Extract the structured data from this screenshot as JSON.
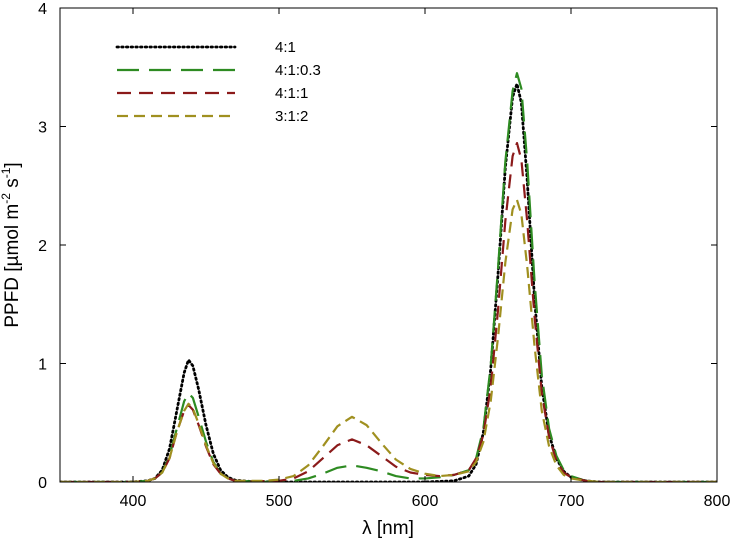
{
  "chart_data": {
    "type": "line",
    "title": "",
    "xlabel": "λ [nm]",
    "ylabel_parts": [
      "PPFD [µmol m",
      "-2",
      " s",
      "-1",
      "]"
    ],
    "xlim": [
      350,
      800
    ],
    "ylim": [
      0,
      4
    ],
    "xticks": [
      400,
      500,
      600,
      700,
      800
    ],
    "yticks": [
      0,
      1,
      2,
      3,
      4
    ],
    "grid": false,
    "legend_position": "top-left",
    "series": [
      {
        "name": "4:1",
        "color": "#000000",
        "dash": "dotted",
        "points": [
          [
            350,
            0
          ],
          [
            400,
            0
          ],
          [
            410,
            0.01
          ],
          [
            415,
            0.03
          ],
          [
            420,
            0.1
          ],
          [
            425,
            0.28
          ],
          [
            430,
            0.6
          ],
          [
            435,
            0.92
          ],
          [
            438,
            1.03
          ],
          [
            441,
            0.98
          ],
          [
            445,
            0.78
          ],
          [
            450,
            0.48
          ],
          [
            455,
            0.24
          ],
          [
            460,
            0.1
          ],
          [
            465,
            0.04
          ],
          [
            470,
            0.015
          ],
          [
            480,
            0.005
          ],
          [
            500,
            0
          ],
          [
            600,
            0
          ],
          [
            620,
            0.01
          ],
          [
            630,
            0.05
          ],
          [
            635,
            0.15
          ],
          [
            640,
            0.42
          ],
          [
            645,
            0.95
          ],
          [
            650,
            1.75
          ],
          [
            655,
            2.65
          ],
          [
            660,
            3.25
          ],
          [
            663,
            3.36
          ],
          [
            666,
            3.2
          ],
          [
            670,
            2.55
          ],
          [
            675,
            1.55
          ],
          [
            680,
            0.8
          ],
          [
            685,
            0.4
          ],
          [
            690,
            0.2
          ],
          [
            695,
            0.09
          ],
          [
            700,
            0.04
          ],
          [
            710,
            0.01
          ],
          [
            720,
            0
          ],
          [
            800,
            0
          ]
        ]
      },
      {
        "name": "4:1:0.3",
        "color": "#2e8b22",
        "dash": "long-dash",
        "points": [
          [
            350,
            0
          ],
          [
            400,
            0
          ],
          [
            410,
            0.01
          ],
          [
            415,
            0.03
          ],
          [
            420,
            0.08
          ],
          [
            425,
            0.22
          ],
          [
            430,
            0.45
          ],
          [
            435,
            0.68
          ],
          [
            438,
            0.75
          ],
          [
            441,
            0.71
          ],
          [
            445,
            0.55
          ],
          [
            450,
            0.34
          ],
          [
            455,
            0.17
          ],
          [
            460,
            0.07
          ],
          [
            465,
            0.03
          ],
          [
            470,
            0.01
          ],
          [
            480,
            0.005
          ],
          [
            500,
            0
          ],
          [
            510,
            0.01
          ],
          [
            520,
            0.03
          ],
          [
            530,
            0.07
          ],
          [
            540,
            0.12
          ],
          [
            550,
            0.14
          ],
          [
            560,
            0.12
          ],
          [
            570,
            0.09
          ],
          [
            580,
            0.05
          ],
          [
            590,
            0.03
          ],
          [
            600,
            0.03
          ],
          [
            610,
            0.04
          ],
          [
            620,
            0.06
          ],
          [
            630,
            0.1
          ],
          [
            635,
            0.2
          ],
          [
            640,
            0.45
          ],
          [
            645,
            0.98
          ],
          [
            650,
            1.8
          ],
          [
            655,
            2.7
          ],
          [
            660,
            3.3
          ],
          [
            663,
            3.45
          ],
          [
            666,
            3.32
          ],
          [
            670,
            2.7
          ],
          [
            675,
            1.7
          ],
          [
            680,
            0.9
          ],
          [
            685,
            0.45
          ],
          [
            690,
            0.22
          ],
          [
            695,
            0.1
          ],
          [
            700,
            0.05
          ],
          [
            710,
            0.01
          ],
          [
            720,
            0
          ],
          [
            800,
            0
          ]
        ]
      },
      {
        "name": "4:1:1",
        "color": "#8b1a1a",
        "dash": "dash",
        "points": [
          [
            350,
            0
          ],
          [
            400,
            0
          ],
          [
            410,
            0.01
          ],
          [
            415,
            0.03
          ],
          [
            420,
            0.08
          ],
          [
            425,
            0.2
          ],
          [
            430,
            0.42
          ],
          [
            435,
            0.6
          ],
          [
            438,
            0.65
          ],
          [
            441,
            0.61
          ],
          [
            445,
            0.48
          ],
          [
            450,
            0.3
          ],
          [
            455,
            0.15
          ],
          [
            460,
            0.07
          ],
          [
            465,
            0.03
          ],
          [
            470,
            0.01
          ],
          [
            480,
            0.005
          ],
          [
            500,
            0.01
          ],
          [
            510,
            0.03
          ],
          [
            520,
            0.09
          ],
          [
            530,
            0.2
          ],
          [
            540,
            0.31
          ],
          [
            550,
            0.36
          ],
          [
            560,
            0.31
          ],
          [
            570,
            0.22
          ],
          [
            580,
            0.13
          ],
          [
            590,
            0.08
          ],
          [
            600,
            0.06
          ],
          [
            610,
            0.05
          ],
          [
            620,
            0.06
          ],
          [
            630,
            0.1
          ],
          [
            635,
            0.2
          ],
          [
            640,
            0.4
          ],
          [
            645,
            0.8
          ],
          [
            650,
            1.45
          ],
          [
            655,
            2.2
          ],
          [
            660,
            2.75
          ],
          [
            663,
            2.86
          ],
          [
            666,
            2.72
          ],
          [
            670,
            2.2
          ],
          [
            675,
            1.4
          ],
          [
            680,
            0.75
          ],
          [
            685,
            0.38
          ],
          [
            690,
            0.18
          ],
          [
            695,
            0.08
          ],
          [
            700,
            0.04
          ],
          [
            710,
            0.01
          ],
          [
            720,
            0
          ],
          [
            800,
            0
          ]
        ]
      },
      {
        "name": "3:1:2",
        "color": "#a09020",
        "dash": "short-dash",
        "points": [
          [
            350,
            0
          ],
          [
            400,
            0
          ],
          [
            410,
            0.01
          ],
          [
            415,
            0.03
          ],
          [
            420,
            0.08
          ],
          [
            425,
            0.2
          ],
          [
            430,
            0.42
          ],
          [
            435,
            0.6
          ],
          [
            438,
            0.66
          ],
          [
            441,
            0.62
          ],
          [
            445,
            0.49
          ],
          [
            450,
            0.31
          ],
          [
            455,
            0.16
          ],
          [
            460,
            0.07
          ],
          [
            465,
            0.03
          ],
          [
            470,
            0.01
          ],
          [
            480,
            0.01
          ],
          [
            490,
            0.01
          ],
          [
            500,
            0.02
          ],
          [
            510,
            0.05
          ],
          [
            520,
            0.14
          ],
          [
            530,
            0.3
          ],
          [
            540,
            0.47
          ],
          [
            550,
            0.55
          ],
          [
            560,
            0.48
          ],
          [
            570,
            0.33
          ],
          [
            580,
            0.19
          ],
          [
            590,
            0.11
          ],
          [
            600,
            0.07
          ],
          [
            610,
            0.05
          ],
          [
            620,
            0.06
          ],
          [
            630,
            0.09
          ],
          [
            635,
            0.17
          ],
          [
            640,
            0.34
          ],
          [
            645,
            0.68
          ],
          [
            650,
            1.22
          ],
          [
            655,
            1.85
          ],
          [
            660,
            2.3
          ],
          [
            663,
            2.38
          ],
          [
            666,
            2.26
          ],
          [
            670,
            1.82
          ],
          [
            675,
            1.15
          ],
          [
            680,
            0.6
          ],
          [
            685,
            0.3
          ],
          [
            690,
            0.14
          ],
          [
            695,
            0.06
          ],
          [
            700,
            0.03
          ],
          [
            710,
            0.01
          ],
          [
            720,
            0
          ],
          [
            800,
            0
          ]
        ]
      }
    ]
  }
}
